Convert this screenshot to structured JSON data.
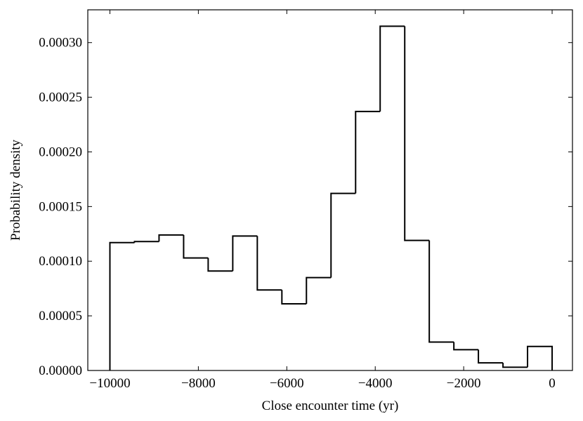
{
  "chart_data": {
    "type": "histogram",
    "xlabel": "Close encounter time (yr)",
    "ylabel": "Probability density",
    "bins": [
      -10000,
      -9444,
      -8889,
      -8333,
      -7778,
      -7222,
      -6667,
      -6111,
      -5556,
      -5000,
      -4444,
      -3889,
      -3333,
      -2778,
      -2222,
      -1667,
      -1111,
      -556,
      0
    ],
    "values": [
      0.000117,
      0.000118,
      0.000124,
      0.000103,
      9.1e-05,
      0.000123,
      7.37e-05,
      6.1e-05,
      8.5e-05,
      0.000162,
      0.000237,
      0.000315,
      0.000119,
      2.6e-05,
      1.9e-05,
      7e-06,
      3e-06,
      2.2e-05
    ],
    "color": "#000000",
    "xlim": [
      -10500,
      460
    ],
    "ylim": [
      0,
      0.00033
    ],
    "xticks": [
      {
        "value": -10000,
        "label": "−10000"
      },
      {
        "value": -8000,
        "label": "−8000"
      },
      {
        "value": -6000,
        "label": "−6000"
      },
      {
        "value": -4000,
        "label": "−4000"
      },
      {
        "value": -2000,
        "label": "−2000"
      },
      0
    ],
    "yticks": [
      {
        "value": 0,
        "label": "0.00000"
      },
      {
        "value": 5e-05,
        "label": "0.00005"
      },
      {
        "value": 0.0001,
        "label": "0.00010"
      },
      {
        "value": 0.00015,
        "label": "0.00015"
      },
      {
        "value": 0.0002,
        "label": "0.00020"
      },
      {
        "value": 0.00025,
        "label": "0.00025"
      },
      {
        "value": 0.0003,
        "label": "0.00030"
      }
    ]
  }
}
